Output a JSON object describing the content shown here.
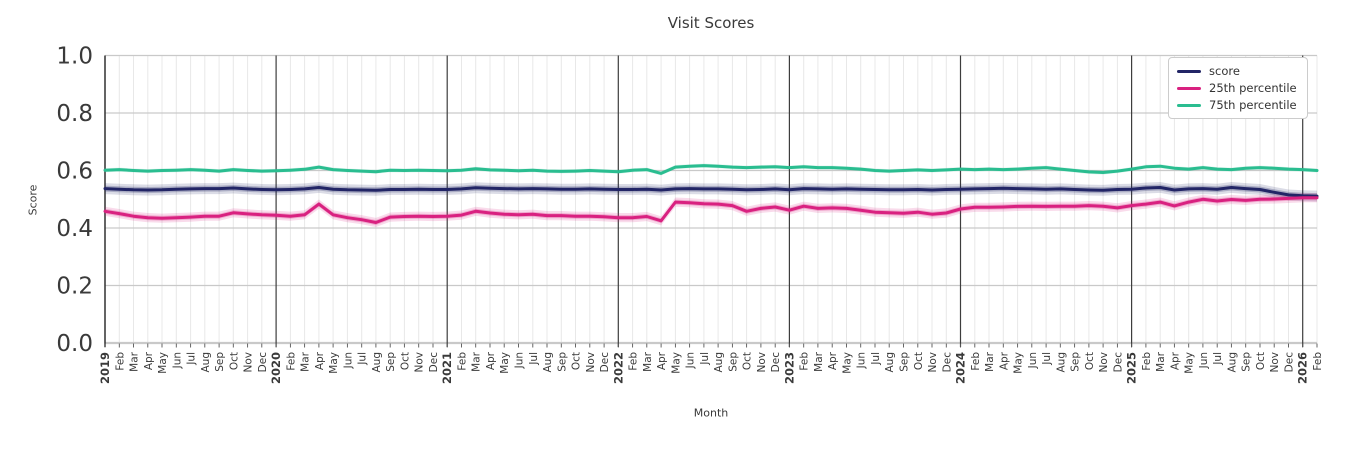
{
  "figure": {
    "background": "#ffffff",
    "text_color": "#3a3a3a",
    "grid_minor_color": "#e8e8e8",
    "grid_major_color": "#c9c9c9",
    "year_line_color": "#3d3d3d",
    "spine_color": "#333333"
  },
  "chart_data": {
    "type": "line",
    "title": "Visit Scores",
    "xlabel": "Month",
    "ylabel": "Score",
    "ylim": [
      0.0,
      1.0
    ],
    "yticks": [
      "0.0",
      "0.2",
      "0.4",
      "0.6",
      "0.8",
      "1.0"
    ],
    "grid": true,
    "legend_position": "upper right",
    "x": [
      "2019",
      "Feb",
      "Mar",
      "Apr",
      "May",
      "Jun",
      "Jul",
      "Aug",
      "Sep",
      "Oct",
      "Nov",
      "Dec",
      "2020",
      "Feb",
      "Mar",
      "Apr",
      "May",
      "Jun",
      "Jul",
      "Aug",
      "Sep",
      "Oct",
      "Nov",
      "Dec",
      "2021",
      "Feb",
      "Mar",
      "Apr",
      "May",
      "Jun",
      "Jul",
      "Aug",
      "Sep",
      "Oct",
      "Nov",
      "Dec",
      "2022",
      "Feb",
      "Mar",
      "Apr",
      "May",
      "Jun",
      "Jul",
      "Aug",
      "Sep",
      "Oct",
      "Nov",
      "Dec",
      "2023",
      "Feb",
      "Mar",
      "Apr",
      "May",
      "Jun",
      "Jul",
      "Aug",
      "Sep",
      "Oct",
      "Nov",
      "Dec",
      "2024",
      "Feb",
      "Mar",
      "Apr",
      "May",
      "Jun",
      "Jul",
      "Aug",
      "Sep",
      "Oct",
      "Nov",
      "Dec",
      "2025",
      "Feb",
      "Mar",
      "Apr",
      "May",
      "Jun",
      "Jul",
      "Aug",
      "Sep",
      "Oct",
      "Nov",
      "Dec",
      "2026",
      "Feb"
    ],
    "series": [
      {
        "name": "score",
        "color": "#222566",
        "ci": 0.019,
        "values": [
          0.537,
          0.535,
          0.533,
          0.532,
          0.533,
          0.535,
          0.536,
          0.537,
          0.537,
          0.539,
          0.536,
          0.534,
          0.533,
          0.534,
          0.536,
          0.541,
          0.535,
          0.533,
          0.532,
          0.531,
          0.534,
          0.534,
          0.535,
          0.534,
          0.534,
          0.536,
          0.54,
          0.538,
          0.537,
          0.536,
          0.537,
          0.536,
          0.535,
          0.535,
          0.536,
          0.535,
          0.534,
          0.534,
          0.535,
          0.532,
          0.536,
          0.537,
          0.536,
          0.536,
          0.535,
          0.533,
          0.534,
          0.536,
          0.533,
          0.537,
          0.536,
          0.535,
          0.536,
          0.535,
          0.534,
          0.533,
          0.533,
          0.534,
          0.532,
          0.534,
          0.535,
          0.536,
          0.537,
          0.538,
          0.537,
          0.536,
          0.535,
          0.536,
          0.534,
          0.532,
          0.531,
          0.534,
          0.535,
          0.539,
          0.541,
          0.532,
          0.536,
          0.537,
          0.535,
          0.541,
          0.537,
          0.534,
          0.524,
          0.515,
          0.512,
          0.511
        ]
      },
      {
        "name": "25th percentile",
        "color": "#d92180",
        "ci": 0.016,
        "values": [
          0.458,
          0.45,
          0.441,
          0.436,
          0.434,
          0.436,
          0.438,
          0.441,
          0.441,
          0.453,
          0.449,
          0.446,
          0.444,
          0.441,
          0.446,
          0.483,
          0.446,
          0.436,
          0.429,
          0.419,
          0.438,
          0.44,
          0.441,
          0.44,
          0.441,
          0.445,
          0.458,
          0.452,
          0.448,
          0.446,
          0.448,
          0.443,
          0.443,
          0.441,
          0.441,
          0.439,
          0.436,
          0.436,
          0.44,
          0.425,
          0.49,
          0.488,
          0.484,
          0.483,
          0.478,
          0.458,
          0.468,
          0.473,
          0.462,
          0.476,
          0.468,
          0.47,
          0.468,
          0.462,
          0.455,
          0.453,
          0.451,
          0.455,
          0.448,
          0.452,
          0.466,
          0.472,
          0.472,
          0.473,
          0.475,
          0.476,
          0.475,
          0.476,
          0.476,
          0.478,
          0.476,
          0.47,
          0.478,
          0.483,
          0.49,
          0.477,
          0.49,
          0.5,
          0.494,
          0.499,
          0.496,
          0.5,
          0.501,
          0.503,
          0.505,
          0.505
        ]
      },
      {
        "name": "75th percentile",
        "color": "#2abd90",
        "ci": 0.007,
        "values": [
          0.601,
          0.603,
          0.6,
          0.598,
          0.6,
          0.601,
          0.603,
          0.601,
          0.598,
          0.603,
          0.6,
          0.598,
          0.599,
          0.601,
          0.604,
          0.612,
          0.603,
          0.6,
          0.598,
          0.596,
          0.601,
          0.6,
          0.601,
          0.6,
          0.599,
          0.601,
          0.606,
          0.602,
          0.601,
          0.599,
          0.601,
          0.598,
          0.597,
          0.598,
          0.6,
          0.598,
          0.596,
          0.601,
          0.603,
          0.59,
          0.612,
          0.615,
          0.617,
          0.615,
          0.612,
          0.61,
          0.612,
          0.613,
          0.61,
          0.613,
          0.61,
          0.61,
          0.608,
          0.605,
          0.6,
          0.598,
          0.6,
          0.602,
          0.6,
          0.602,
          0.605,
          0.603,
          0.605,
          0.603,
          0.605,
          0.608,
          0.61,
          0.605,
          0.6,
          0.595,
          0.593,
          0.598,
          0.605,
          0.613,
          0.615,
          0.608,
          0.605,
          0.61,
          0.605,
          0.603,
          0.608,
          0.61,
          0.608,
          0.605,
          0.603,
          0.6
        ]
      }
    ]
  }
}
